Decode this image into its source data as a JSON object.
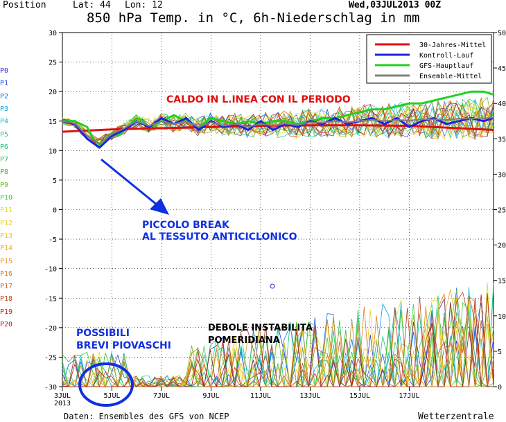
{
  "header": {
    "position": "Position",
    "lat_label": "Lat: 44",
    "lon_label": "Lon: 12",
    "run": "Wed,03JUL2013 00Z"
  },
  "footer": {
    "source": "Daten: Ensembles des GFS von NCEP",
    "brand": "Wetterzentrale"
  },
  "member_labels": [
    "P0",
    "P1",
    "P2",
    "P3",
    "P4",
    "P5",
    "P6",
    "P7",
    "P8",
    "P9",
    "P10",
    "P11",
    "P12",
    "P13",
    "P14",
    "P15",
    "P16",
    "P17",
    "P18",
    "P19",
    "P20"
  ],
  "member_colors": [
    "#3030d0",
    "#2050e0",
    "#1070e0",
    "#10a0d8",
    "#10c0c0",
    "#20c8a0",
    "#20c080",
    "#20c050",
    "#30c030",
    "#60c020",
    "#40d040",
    "#e0e020",
    "#e8d020",
    "#e8c020",
    "#e8b020",
    "#e89820",
    "#d88020",
    "#c86020",
    "#c04020",
    "#b03020",
    "#a02020"
  ],
  "chart_data": {
    "type": "line",
    "title": "850 hPa Temp. in °C, 6h-Niederschlag in mm",
    "left_axis": {
      "ylim": [
        -30,
        30
      ],
      "ticks": [
        30,
        25,
        20,
        15,
        10,
        5,
        0,
        -5,
        -10,
        -15,
        -20,
        -25,
        -30
      ]
    },
    "right_axis": {
      "ylim": [
        0,
        50
      ],
      "ticks": [
        50,
        45,
        40,
        35,
        30,
        25,
        20,
        15,
        10,
        5,
        0
      ]
    },
    "x_range": [
      0,
      17.4
    ],
    "x_ticks": [
      {
        "x": 0,
        "label": "3JUL",
        "sub": "2013"
      },
      {
        "x": 2,
        "label": "5JUL"
      },
      {
        "x": 4,
        "label": "7JUL"
      },
      {
        "x": 6,
        "label": "9JUL"
      },
      {
        "x": 8,
        "label": "11JUL"
      },
      {
        "x": 10,
        "label": "13JUL"
      },
      {
        "x": 12,
        "label": "15JUL"
      },
      {
        "x": 14,
        "label": "17JUL"
      }
    ],
    "legend": {
      "placement": "top-right",
      "items": [
        {
          "name": "30-Jahres-Mittel",
          "color": "#e01010"
        },
        {
          "name": "Kontroll-Lauf",
          "color": "#2020e0"
        },
        {
          "name": "GFS-Hauptlauf",
          "color": "#20d020"
        },
        {
          "name": "Ensemble-Mittel",
          "color": "#808080"
        }
      ]
    },
    "series": [
      {
        "name": "30-Jahres-Mittel",
        "color": "#e01010",
        "axis": "temp",
        "x": [
          0,
          2,
          4,
          6,
          8,
          10,
          12,
          14,
          17.4
        ],
        "y": [
          13.2,
          13.6,
          13.8,
          14.0,
          14.2,
          14.3,
          14.3,
          14.2,
          13.5
        ]
      },
      {
        "name": "GFS-Hauptlauf",
        "color": "#20d020",
        "axis": "temp",
        "x": [
          0,
          0.5,
          1,
          1.25,
          1.5,
          1.75,
          2,
          2.25,
          2.5,
          3,
          3.25,
          3.5,
          4,
          4.5,
          5,
          5.5,
          6,
          6.5,
          7,
          7.5,
          8,
          8.5,
          9,
          9.5,
          10,
          10.5,
          11,
          11.5,
          12,
          12.5,
          13,
          13.5,
          14,
          14.5,
          15,
          15.5,
          16,
          16.5,
          17,
          17.4
        ],
        "y": [
          15,
          15,
          14,
          12,
          11,
          12,
          13,
          12.5,
          13.5,
          15.5,
          15,
          14,
          15,
          16,
          15,
          14,
          15.5,
          15,
          14.5,
          15,
          14.5,
          15,
          15,
          14.5,
          15,
          15.5,
          15.5,
          16,
          16.5,
          17,
          17,
          17.5,
          18,
          18,
          18.5,
          19,
          19.5,
          20,
          20,
          19.5
        ]
      },
      {
        "name": "Kontroll-Lauf",
        "color": "#2020e0",
        "axis": "temp",
        "x": [
          0,
          0.5,
          1,
          1.5,
          2,
          2.5,
          3,
          3.5,
          4,
          4.5,
          5,
          5.5,
          6,
          6.5,
          7,
          7.5,
          8,
          8.5,
          9,
          9.5,
          10,
          10.5,
          11,
          11.5,
          12,
          12.5,
          13,
          13.5,
          14,
          14.5,
          15,
          15.5,
          16,
          16.5,
          17,
          17.4
        ],
        "y": [
          15,
          14.5,
          12,
          10.5,
          12.5,
          13.5,
          15,
          14,
          15.5,
          14.5,
          15.5,
          13.5,
          15,
          14,
          14.5,
          13.5,
          15,
          13.5,
          14.5,
          14,
          15,
          14.5,
          15.5,
          14.5,
          15,
          15.5,
          14.5,
          15.5,
          14,
          15,
          15.5,
          14.5,
          15,
          15.5,
          15,
          15.5
        ]
      },
      {
        "name": "Ensemble-Mittel",
        "color": "#808080",
        "axis": "temp",
        "x": [
          0,
          0.5,
          1,
          1.5,
          2,
          2.5,
          3,
          3.5,
          4,
          4.5,
          5,
          5.5,
          6,
          6.5,
          7,
          7.5,
          8,
          8.5,
          9,
          9.5,
          10,
          10.5,
          11,
          11.5,
          12,
          12.5,
          13,
          13.5,
          14,
          14.5,
          15,
          15.5,
          16,
          16.5,
          17,
          17.4
        ],
        "y": [
          15,
          14.6,
          12.5,
          11.2,
          12.8,
          13.8,
          15,
          14.2,
          15,
          14.5,
          15,
          14,
          14.8,
          14.2,
          14.5,
          14,
          14.6,
          14.2,
          14.6,
          14.3,
          14.8,
          14.7,
          15,
          14.8,
          15,
          15.2,
          15,
          15.2,
          15.1,
          15.3,
          15.3,
          15.2,
          15.4,
          15.4,
          15.5,
          15.6
        ]
      }
    ]
  },
  "annotations": [
    {
      "text": "CALDO IN L.INEA CON IL PERIODO",
      "color": "#e01010"
    },
    {
      "text": "PICCOLO BREAK",
      "color": "#1030e0"
    },
    {
      "text": "AL TESSUTO ANTICICLONICO",
      "color": "#1030e0"
    },
    {
      "text": "POSSIBILI",
      "color": "#1030e0"
    },
    {
      "text": "BREVI PIOVASCHI",
      "color": "#1030e0"
    },
    {
      "text": "DEBOLE INSTABILITA",
      "color": "#000000"
    },
    {
      "text": "POMERIDIANA",
      "color": "#000000"
    }
  ]
}
